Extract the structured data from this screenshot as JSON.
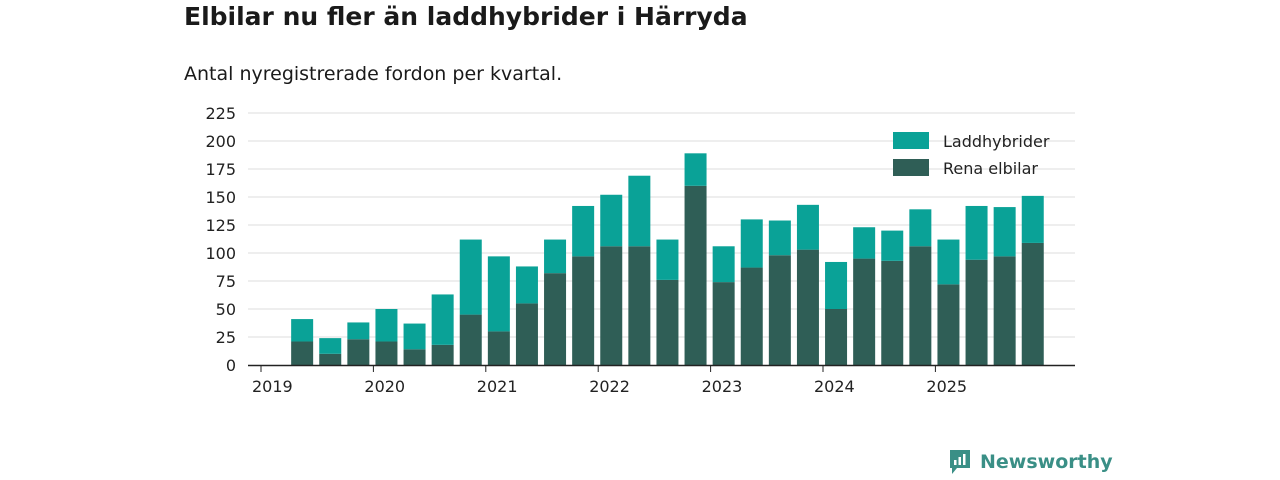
{
  "header": {
    "title": "Elbilar nu fler än laddhybrider i Härryda",
    "subtitle": "Antal nyregistrerade fordon per kvartal."
  },
  "brand": {
    "name": "Newsworthy",
    "icon": "newsworthy-logo-icon",
    "color": "#3a8f86"
  },
  "colors": {
    "laddhybrider": "#0aa297",
    "rena_elbilar": "#2f5e56",
    "grid": "#dddddd",
    "axis": "#222222"
  },
  "chart_data": {
    "type": "bar",
    "stacked": true,
    "title": "Elbilar nu fler än laddhybrider i Härryda",
    "subtitle": "Antal nyregistrerade fordon per kvartal.",
    "xlabel": "",
    "ylabel": "",
    "ylim": [
      0,
      225
    ],
    "yticks": [
      0,
      25,
      50,
      75,
      100,
      125,
      150,
      175,
      200,
      225
    ],
    "xtick_labels": [
      "2019",
      "2020",
      "2021",
      "2022",
      "2023",
      "2024",
      "2025"
    ],
    "grid": true,
    "legend_position": "top-right",
    "categories": [
      "2019 Q1",
      "2019 Q2",
      "2019 Q3",
      "2019 Q4",
      "2020 Q1",
      "2020 Q2",
      "2020 Q3",
      "2020 Q4",
      "2021 Q1",
      "2021 Q2",
      "2021 Q3",
      "2021 Q4",
      "2022 Q1",
      "2022 Q2",
      "2022 Q3",
      "2022 Q4",
      "2023 Q1",
      "2023 Q2",
      "2023 Q3",
      "2023 Q4",
      "2024 Q1",
      "2024 Q2",
      "2024 Q3",
      "2024 Q4",
      "2025 Q1",
      "2025 Q2",
      "2025 Q3",
      "2025 Q4"
    ],
    "series": [
      {
        "name": "Rena elbilar",
        "color": "#2f5e56",
        "values": [
          0,
          21,
          10,
          23,
          21,
          14,
          18,
          45,
          30,
          55,
          82,
          97,
          106,
          106,
          76,
          160,
          74,
          87,
          98,
          103,
          50,
          95,
          93,
          106,
          72,
          94,
          97,
          109
        ]
      },
      {
        "name": "Laddhybrider",
        "color": "#0aa297",
        "values": [
          0,
          20,
          14,
          15,
          29,
          23,
          45,
          67,
          67,
          33,
          30,
          45,
          46,
          63,
          36,
          29,
          32,
          43,
          31,
          40,
          42,
          28,
          27,
          33,
          40,
          48,
          44,
          42
        ]
      }
    ]
  }
}
